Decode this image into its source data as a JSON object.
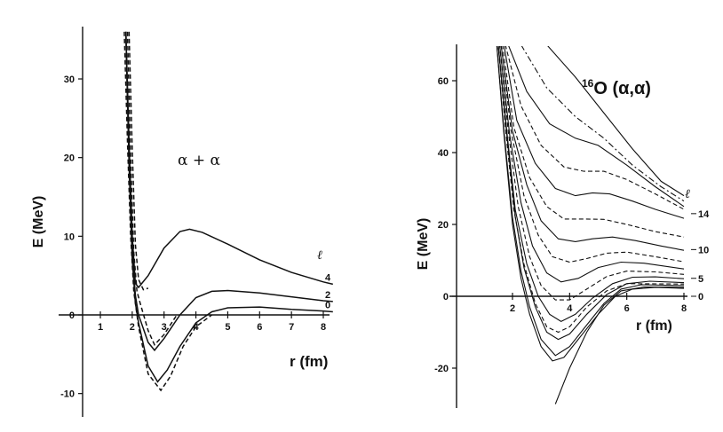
{
  "chart_data": [
    {
      "type": "line",
      "title": "",
      "annotation": "α + α",
      "xlabel": "r (fm)",
      "ylabel": "E (MeV)",
      "xlim": [
        0,
        8.5
      ],
      "ylim": [
        -11,
        35
      ],
      "xticks": [
        "1",
        "2",
        "3",
        "4",
        "5",
        "6",
        "7",
        "8"
      ],
      "yticks": [
        "-10",
        "0",
        "10",
        "20",
        "30"
      ],
      "legend_symbol": "ℓ",
      "series": [
        {
          "name": "4",
          "style": "solid",
          "points": [
            [
              1.8,
              36
            ],
            [
              1.9,
              22
            ],
            [
              2.0,
              10
            ],
            [
              2.1,
              4
            ],
            [
              2.2,
              3.5
            ],
            [
              2.5,
              5.0
            ],
            [
              3.0,
              8.5
            ],
            [
              3.5,
              10.6
            ],
            [
              3.8,
              10.9
            ],
            [
              4.2,
              10.5
            ],
            [
              5.0,
              9.0
            ],
            [
              6.0,
              7.0
            ],
            [
              7.0,
              5.4
            ],
            [
              8.0,
              4.2
            ],
            [
              8.3,
              3.9
            ]
          ]
        },
        {
          "name": "2",
          "style": "solid",
          "points": [
            [
              1.8,
              36
            ],
            [
              1.9,
              20
            ],
            [
              2.0,
              8
            ],
            [
              2.1,
              2.5
            ],
            [
              2.2,
              0
            ],
            [
              2.5,
              -3.5
            ],
            [
              2.7,
              -4.5
            ],
            [
              3.0,
              -3.0
            ],
            [
              3.5,
              0
            ],
            [
              4.0,
              2.2
            ],
            [
              4.5,
              3.0
            ],
            [
              5.0,
              3.1
            ],
            [
              6.0,
              2.8
            ],
            [
              7.0,
              2.3
            ],
            [
              8.0,
              1.8
            ],
            [
              8.3,
              1.7
            ]
          ]
        },
        {
          "name": "0",
          "style": "solid",
          "points": [
            [
              1.8,
              36
            ],
            [
              1.9,
              19
            ],
            [
              2.0,
              7
            ],
            [
              2.1,
              1.5
            ],
            [
              2.2,
              -1.0
            ],
            [
              2.5,
              -6.5
            ],
            [
              2.8,
              -8.5
            ],
            [
              3.1,
              -7.0
            ],
            [
              3.5,
              -4.0
            ],
            [
              4.0,
              -1.0
            ],
            [
              4.5,
              0.4
            ],
            [
              5.0,
              0.9
            ],
            [
              6.0,
              1.0
            ],
            [
              7.0,
              0.7
            ],
            [
              8.0,
              0.5
            ],
            [
              8.3,
              0.4
            ]
          ]
        },
        {
          "name": "",
          "style": "dashed",
          "points": [
            [
              1.85,
              36
            ],
            [
              1.95,
              20
            ],
            [
              2.05,
              8
            ],
            [
              2.15,
              3.0
            ],
            [
              2.25,
              1.5
            ],
            [
              2.5,
              -2.0
            ],
            [
              2.7,
              -3.8
            ],
            [
              3.0,
              -2.5
            ],
            [
              3.4,
              0
            ]
          ]
        },
        {
          "name": "",
          "style": "dashed",
          "points": [
            [
              1.75,
              36
            ],
            [
              1.85,
              22
            ],
            [
              1.95,
              10
            ],
            [
              2.05,
              3
            ],
            [
              2.2,
              -1.5
            ],
            [
              2.5,
              -7.5
            ],
            [
              2.9,
              -9.6
            ],
            [
              3.2,
              -7.8
            ],
            [
              3.6,
              -4.0
            ],
            [
              4.0,
              -1.5
            ],
            [
              4.5,
              0
            ]
          ]
        },
        {
          "name": "",
          "style": "dashed",
          "points": [
            [
              1.9,
              36
            ],
            [
              2.0,
              21
            ],
            [
              2.1,
              9
            ],
            [
              2.2,
              4.5
            ],
            [
              2.35,
              3.2
            ],
            [
              2.5,
              3.4
            ]
          ]
        }
      ]
    },
    {
      "type": "line",
      "title": "",
      "annotation_sup": "16",
      "annotation": "O (α,α)",
      "xlabel": "r (fm)",
      "ylabel": "E (MeV)",
      "xlim": [
        0,
        8.5
      ],
      "ylim": [
        -30,
        70
      ],
      "xticks": [
        "2",
        "4",
        "6",
        "8"
      ],
      "yticks": [
        "-20",
        "0",
        "20",
        "40",
        "60"
      ],
      "legend_symbol": "ℓ",
      "right_labels": [
        {
          "text": "14",
          "y": 23
        },
        {
          "text": "10",
          "y": 13
        },
        {
          "text": "5",
          "y": 5
        },
        {
          "text": "0",
          "y": 0
        }
      ],
      "series": [
        {
          "name": "0",
          "style": "solid",
          "points": [
            [
              1.45,
              70
            ],
            [
              1.7,
              45
            ],
            [
              2.0,
              20
            ],
            [
              2.3,
              5
            ],
            [
              2.6,
              -5
            ],
            [
              3.0,
              -14
            ],
            [
              3.4,
              -18
            ],
            [
              3.8,
              -17
            ],
            [
              4.3,
              -12
            ],
            [
              5.0,
              -5
            ],
            [
              5.6,
              0
            ],
            [
              6.2,
              2
            ],
            [
              7.0,
              2.5
            ],
            [
              8.0,
              2.2
            ]
          ]
        },
        {
          "name": "",
          "style": "solid",
          "points": [
            [
              1.45,
              70
            ],
            [
              1.7,
              46
            ],
            [
              2.0,
              22
            ],
            [
              2.3,
              7
            ],
            [
              2.6,
              -3
            ],
            [
              3.0,
              -12
            ],
            [
              3.5,
              -16.5
            ],
            [
              4.0,
              -14
            ],
            [
              4.5,
              -9
            ],
            [
              5.2,
              -2
            ],
            [
              5.8,
              2
            ],
            [
              6.5,
              3.2
            ],
            [
              8.0,
              3.0
            ]
          ]
        },
        {
          "name": "",
          "style": "solid",
          "points": [
            [
              1.5,
              70
            ],
            [
              1.8,
              45
            ],
            [
              2.1,
              22
            ],
            [
              2.4,
              8
            ],
            [
              2.8,
              -3
            ],
            [
              3.2,
              -10
            ],
            [
              3.6,
              -12
            ],
            [
              4.0,
              -10.5
            ],
            [
              4.6,
              -5
            ],
            [
              5.3,
              0.5
            ],
            [
              6.0,
              3.5
            ],
            [
              6.8,
              4.2
            ],
            [
              8.0,
              3.8
            ]
          ]
        },
        {
          "name": "",
          "style": "solid",
          "points": [
            [
              1.5,
              70
            ],
            [
              1.8,
              46
            ],
            [
              2.1,
              24
            ],
            [
              2.5,
              9
            ],
            [
              2.9,
              0
            ],
            [
              3.3,
              -5
            ],
            [
              3.7,
              -7
            ],
            [
              4.2,
              -5
            ],
            [
              4.8,
              -0.5
            ],
            [
              5.5,
              3.5
            ],
            [
              6.2,
              5.3
            ],
            [
              7.0,
              5.4
            ],
            [
              8.0,
              4.9
            ]
          ]
        },
        {
          "name": "",
          "style": "dashed",
          "points": [
            [
              1.55,
              70
            ],
            [
              1.85,
              46
            ],
            [
              2.2,
              25
            ],
            [
              2.6,
              11
            ],
            [
              3.0,
              3
            ],
            [
              3.5,
              -1
            ],
            [
              4.0,
              -1.0
            ],
            [
              4.6,
              2
            ],
            [
              5.3,
              5.5
            ],
            [
              6.0,
              7.0
            ],
            [
              7.0,
              6.8
            ],
            [
              8.0,
              6.1
            ]
          ]
        },
        {
          "name": "",
          "style": "solid",
          "points": [
            [
              1.55,
              70
            ],
            [
              1.9,
              45
            ],
            [
              2.3,
              26
            ],
            [
              2.7,
              14
            ],
            [
              3.2,
              6.5
            ],
            [
              3.7,
              4.0
            ],
            [
              4.3,
              5.0
            ],
            [
              5.0,
              8.0
            ],
            [
              5.8,
              9.5
            ],
            [
              6.6,
              9.2
            ],
            [
              8.0,
              7.6
            ]
          ]
        },
        {
          "name": "",
          "style": "dashed",
          "points": [
            [
              1.6,
              70
            ],
            [
              1.95,
              46
            ],
            [
              2.4,
              28
            ],
            [
              2.9,
              17
            ],
            [
              3.4,
              11
            ],
            [
              4.0,
              9.5
            ],
            [
              4.6,
              10.5
            ],
            [
              5.3,
              12.0
            ],
            [
              6.0,
              12.3
            ],
            [
              7.0,
              11.0
            ],
            [
              8.0,
              9.6
            ]
          ]
        },
        {
          "name": "10",
          "style": "solid",
          "points": [
            [
              1.6,
              70
            ],
            [
              2.0,
              46
            ],
            [
              2.5,
              31
            ],
            [
              3.0,
              21
            ],
            [
              3.6,
              16
            ],
            [
              4.2,
              15.2
            ],
            [
              4.8,
              16.0
            ],
            [
              5.5,
              16.5
            ],
            [
              6.3,
              15.5
            ],
            [
              7.2,
              14.0
            ],
            [
              8.0,
              12.8
            ]
          ]
        },
        {
          "name": "",
          "style": "dashed",
          "points": [
            [
              1.65,
              70
            ],
            [
              2.05,
              47
            ],
            [
              2.6,
              33
            ],
            [
              3.2,
              25
            ],
            [
              3.8,
              21.5
            ],
            [
              4.5,
              21.5
            ],
            [
              5.2,
              21.4
            ],
            [
              6.0,
              20.0
            ],
            [
              7.0,
              18.0
            ],
            [
              8.0,
              16.5
            ]
          ]
        },
        {
          "name": "",
          "style": "solid",
          "points": [
            [
              1.7,
              70
            ],
            [
              2.15,
              49
            ],
            [
              2.8,
              37
            ],
            [
              3.5,
              30
            ],
            [
              4.2,
              28.0
            ],
            [
              4.8,
              28.8
            ],
            [
              5.4,
              28.5
            ],
            [
              6.2,
              26.5
            ],
            [
              7.0,
              24.2
            ],
            [
              8.0,
              21.7
            ]
          ]
        },
        {
          "name": "14",
          "style": "dashed",
          "points": [
            [
              1.75,
              70
            ],
            [
              2.3,
              53
            ],
            [
              3.0,
              42
            ],
            [
              3.8,
              36
            ],
            [
              4.5,
              34.8
            ],
            [
              5.2,
              34.8
            ],
            [
              6.0,
              32.5
            ],
            [
              7.0,
              28.5
            ],
            [
              8.0,
              24.2
            ]
          ]
        },
        {
          "name": "",
          "style": "solid",
          "points": [
            [
              1.85,
              70
            ],
            [
              2.5,
              57
            ],
            [
              3.3,
              48
            ],
            [
              4.2,
              44
            ],
            [
              5.0,
              42
            ],
            [
              6.0,
              36.5
            ],
            [
              7.0,
              30.5
            ],
            [
              8.0,
              25.0
            ]
          ]
        },
        {
          "name": "",
          "style": "dashdot",
          "points": [
            [
              2.3,
              70
            ],
            [
              3.2,
              58
            ],
            [
              4.2,
              50
            ],
            [
              5.2,
              44
            ],
            [
              6.2,
              36.5
            ],
            [
              7.2,
              30.5
            ],
            [
              8.0,
              26.5
            ]
          ]
        },
        {
          "name": "",
          "style": "solid",
          "points": [
            [
              3.2,
              70
            ],
            [
              4.2,
              61
            ],
            [
              5.2,
              51
            ],
            [
              6.2,
              41
            ],
            [
              7.2,
              32
            ],
            [
              8.0,
              28
            ]
          ]
        },
        {
          "name": "",
          "style": "solid",
          "points": [
            [
              3.5,
              -30
            ],
            [
              4.0,
              -20
            ],
            [
              4.6,
              -10
            ],
            [
              5.2,
              -2.5
            ],
            [
              5.8,
              1.5
            ],
            [
              6.6,
              2.6
            ],
            [
              8.0,
              2.5
            ]
          ]
        },
        {
          "name": "",
          "style": "dashed",
          "points": [
            [
              1.5,
              70
            ],
            [
              1.75,
              47
            ],
            [
              2.05,
              24
            ],
            [
              2.4,
              9
            ],
            [
              2.8,
              -2
            ],
            [
              3.2,
              -8.5
            ],
            [
              3.6,
              -10
            ],
            [
              4.0,
              -8.5
            ],
            [
              4.6,
              -3
            ],
            [
              5.3,
              1.5
            ],
            [
              6.0,
              3.5
            ],
            [
              8.0,
              3.4
            ]
          ]
        }
      ]
    }
  ]
}
